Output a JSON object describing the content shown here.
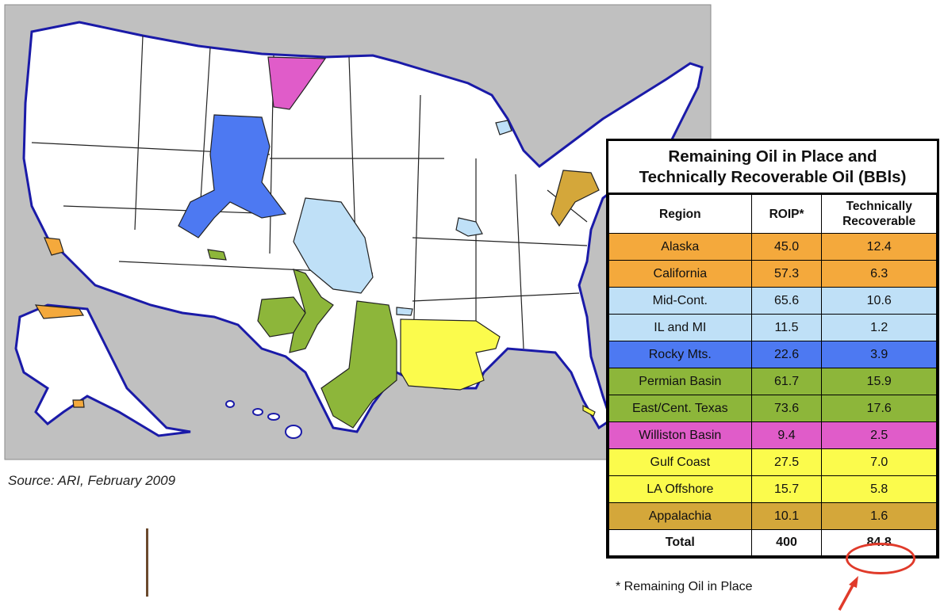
{
  "source_note": "Source: ARI, February 2009",
  "table": {
    "title_line1": "Remaining Oil in Place and",
    "title_line2": "Technically Recoverable Oil (BBls)",
    "headers": {
      "region": "Region",
      "roip": "ROIP*",
      "tr1": "Technically",
      "tr2": "Recoverable"
    },
    "rows": [
      {
        "region": "Alaska",
        "roip": "45.0",
        "tr": "12.4",
        "color": "#f4a93c"
      },
      {
        "region": "California",
        "roip": "57.3",
        "tr": "6.3",
        "color": "#f4a93c"
      },
      {
        "region": "Mid-Cont.",
        "roip": "65.6",
        "tr": "10.6",
        "color": "#bfe0f7"
      },
      {
        "region": "IL and MI",
        "roip": "11.5",
        "tr": "1.2",
        "color": "#bfe0f7"
      },
      {
        "region": "Rocky Mts.",
        "roip": "22.6",
        "tr": "3.9",
        "color": "#4d79f2"
      },
      {
        "region": "Permian Basin",
        "roip": "61.7",
        "tr": "15.9",
        "color": "#8db63a"
      },
      {
        "region": "East/Cent. Texas",
        "roip": "73.6",
        "tr": "17.6",
        "color": "#8db63a"
      },
      {
        "region": "Williston Basin",
        "roip": "9.4",
        "tr": "2.5",
        "color": "#e05cc9"
      },
      {
        "region": "Gulf Coast",
        "roip": "27.5",
        "tr": "7.0",
        "color": "#fbfb4c"
      },
      {
        "region": "LA Offshore",
        "roip": "15.7",
        "tr": "5.8",
        "color": "#fbfb4c"
      },
      {
        "region": "Appalachia",
        "roip": "10.1",
        "tr": "1.6",
        "color": "#d4a73a"
      }
    ],
    "total": {
      "label": "Total",
      "roip": "400",
      "tr": "84.8"
    },
    "footnote": "* Remaining Oil in Place"
  },
  "colors": {
    "map_background": "#c0c0c0",
    "land": "#ffffff",
    "coast": "#1a1aa8",
    "highlight": "#e03a2a"
  }
}
